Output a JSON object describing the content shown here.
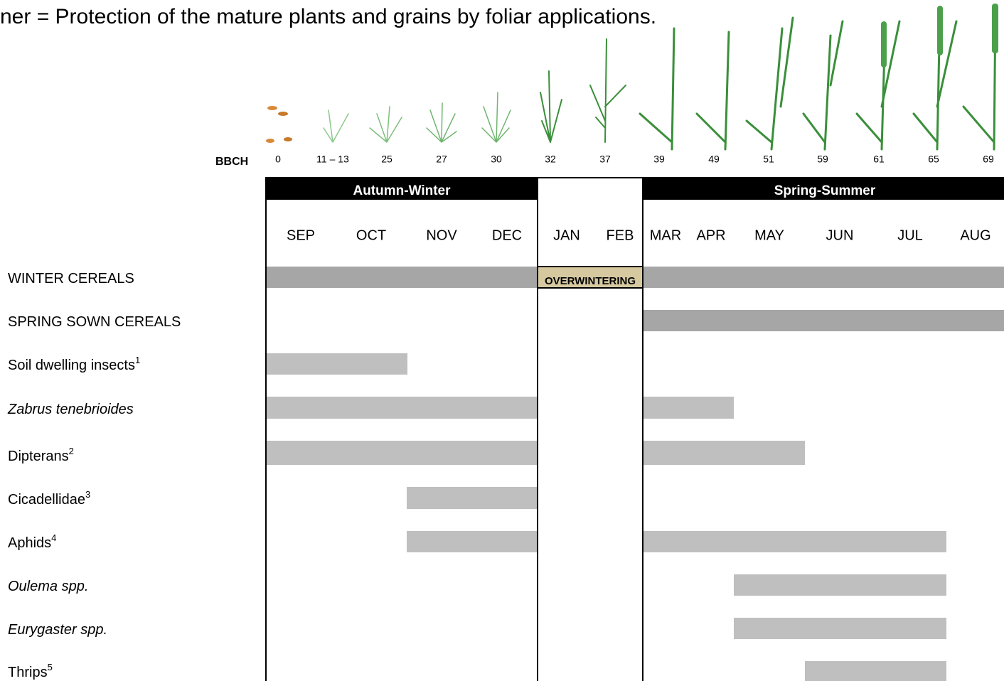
{
  "title": "ner =  Protection of the mature plants and grains by foliar applications.",
  "bbch": {
    "label": "BBCH",
    "stages": [
      "0",
      "11 – 13",
      "25",
      "27",
      "30",
      "32",
      "37",
      "39",
      "49",
      "51",
      "59",
      "61",
      "65",
      "69"
    ]
  },
  "seasons": [
    "Autumn-Winter",
    "Spring-Summer"
  ],
  "months": [
    "SEP",
    "OCT",
    "NOV",
    "DEC",
    "JAN",
    "FEB",
    "MAR",
    "APR",
    "MAY",
    "JUN",
    "JUL",
    "AUG"
  ],
  "overwintering": "OVERWINTERING",
  "rows": [
    {
      "label": "WINTER CEREALS"
    },
    {
      "label": "SPRING SOWN CEREALS"
    },
    {
      "label": "Soil dwelling insects",
      "note": "1"
    },
    {
      "label": "Zabrus tenebrioides"
    },
    {
      "label": "Dipterans",
      "note": "2"
    },
    {
      "label": "Cicadellidae",
      "note": "3"
    },
    {
      "label": "Aphids",
      "note": "4"
    },
    {
      "label": "Oulema spp."
    },
    {
      "label": "Eurygaster spp."
    },
    {
      "label": "Thrips",
      "note": "5"
    }
  ]
}
